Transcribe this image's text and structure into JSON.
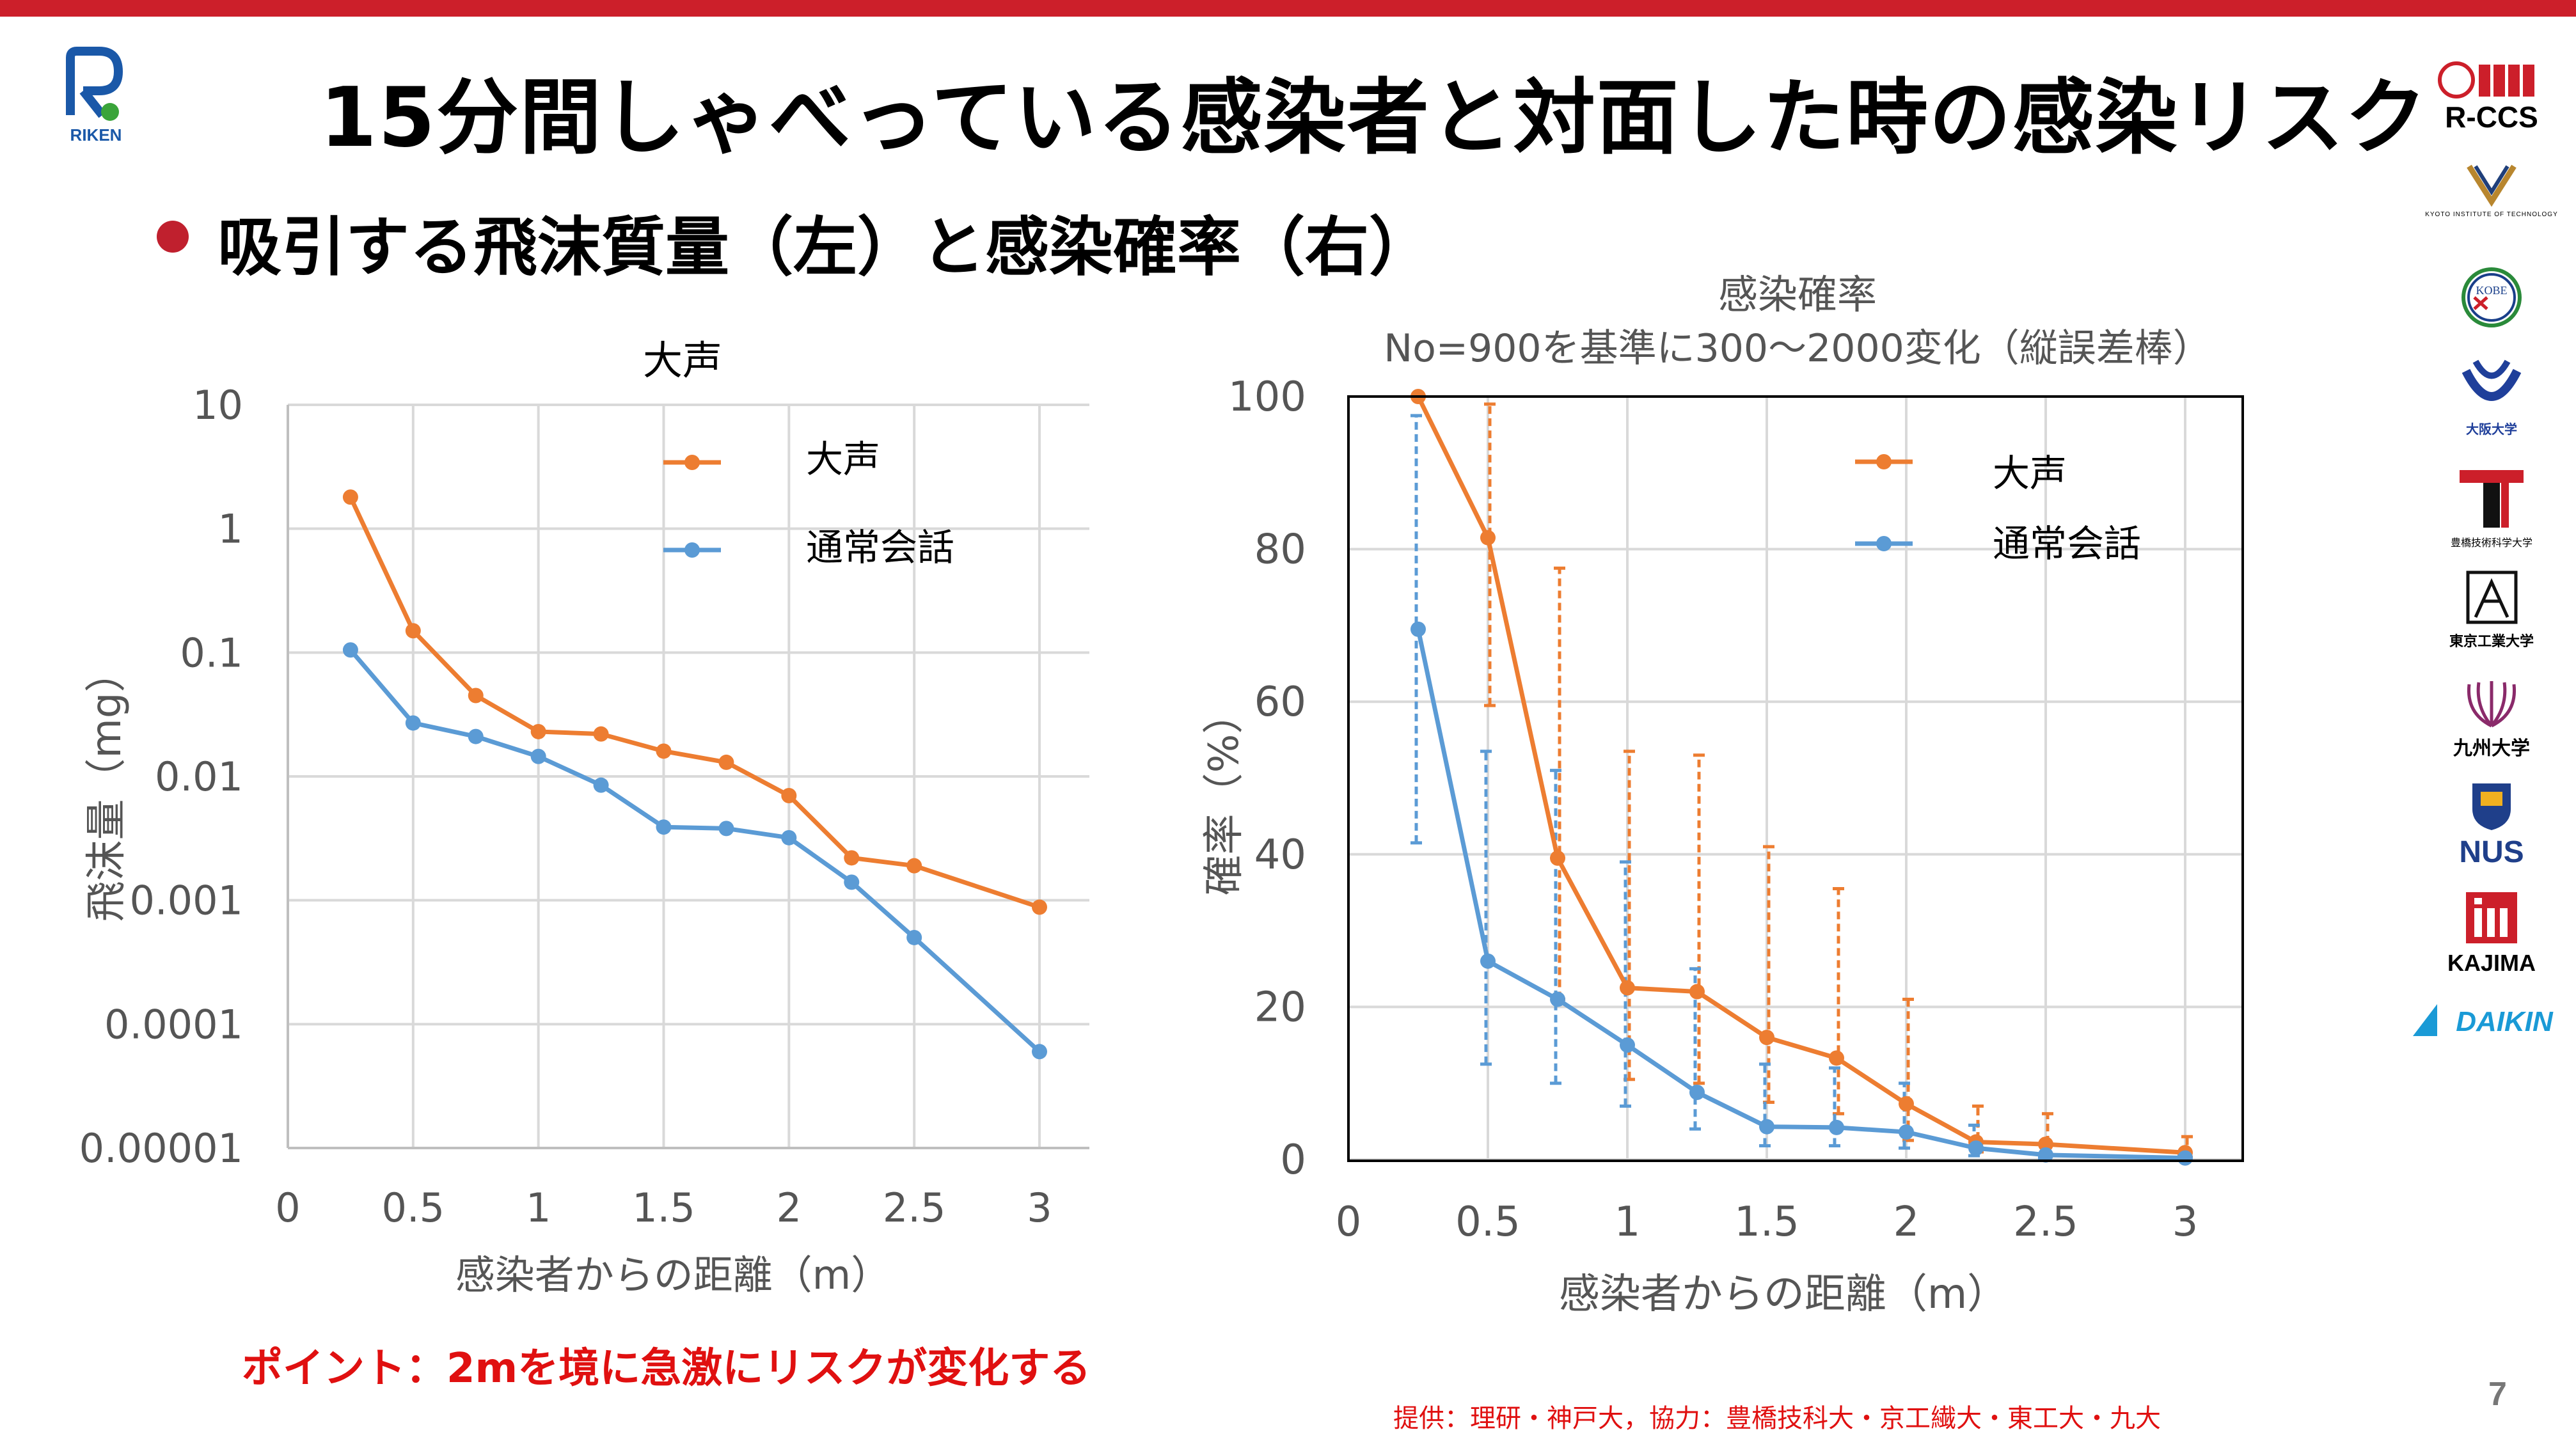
{
  "header": {
    "title": "15分間しゃべっている感染者と対面した時の感染リスク",
    "subtitle": "吸引する飛沫質量（左）と感染確率（右）",
    "riken_logo_text": "RIKEN"
  },
  "colors": {
    "topbar": "#cc1f2a",
    "loud": "#ed7d31",
    "normal": "#5b9bd5",
    "accent_red": "#e01010"
  },
  "chart_data": [
    {
      "type": "line",
      "title": "大声",
      "xlabel": "感染者からの距離（m）",
      "ylabel": "飛沫量（mg）",
      "yscale": "log",
      "xlim": [
        0,
        3
      ],
      "ylim": [
        1e-05,
        10
      ],
      "xticks": [
        "0",
        "0.5",
        "1",
        "1.5",
        "2",
        "2.5",
        "3"
      ],
      "yticks": [
        "10",
        "1",
        "0.1",
        "0.01",
        "0.001",
        "0.0001",
        "0.00001"
      ],
      "grid": true,
      "legend_position": "top-right",
      "series": [
        {
          "name": "大声",
          "color": "#ed7d31",
          "x": [
            0.25,
            0.5,
            0.75,
            1,
            1.25,
            1.5,
            1.75,
            2,
            2.25,
            2.5,
            3
          ],
          "y": [
            1.8,
            0.15,
            0.045,
            0.023,
            0.022,
            0.016,
            0.013,
            0.007,
            0.0022,
            0.0019,
            0.00088
          ]
        },
        {
          "name": "通常会話",
          "color": "#5b9bd5",
          "x": [
            0.25,
            0.5,
            0.75,
            1,
            1.25,
            1.5,
            1.75,
            2,
            2.25,
            2.5,
            3
          ],
          "y": [
            0.105,
            0.027,
            0.021,
            0.0145,
            0.0085,
            0.0039,
            0.0038,
            0.0032,
            0.0014,
            0.0005,
            6e-05
          ]
        }
      ]
    },
    {
      "type": "line",
      "title": "感染確率",
      "subtitle": "No=900を基準に300～2000変化（縦誤差棒）",
      "xlabel": "感染者からの距離（m）",
      "ylabel": "確率（%）",
      "xlim": [
        0,
        3
      ],
      "ylim": [
        0,
        100
      ],
      "xticks": [
        "0",
        "0.5",
        "1",
        "1.5",
        "2",
        "2.5",
        "3"
      ],
      "yticks": [
        "0",
        "20",
        "40",
        "60",
        "80",
        "100"
      ],
      "grid": true,
      "legend_position": "top-right",
      "series": [
        {
          "name": "大声",
          "color": "#ed7d31",
          "x": [
            0.25,
            0.5,
            0.75,
            1,
            1.25,
            1.5,
            1.75,
            2,
            2.25,
            2.5,
            3
          ],
          "y": [
            100,
            81.5,
            39.5,
            22.5,
            22,
            16,
            13.3,
            7.3,
            2.3,
            2,
            0.9
          ],
          "err_low": [
            100,
            59.5,
            21,
            10.5,
            10,
            7.5,
            6,
            2.5,
            1,
            0.5,
            0.3
          ],
          "err_high": [
            100,
            99,
            77.5,
            53.5,
            53,
            41,
            35.5,
            21,
            7,
            6,
            3
          ]
        },
        {
          "name": "通常会話",
          "color": "#5b9bd5",
          "x": [
            0.25,
            0.5,
            0.75,
            1,
            1.25,
            1.5,
            1.75,
            2,
            2.25,
            2.5,
            3
          ],
          "y": [
            69.5,
            26,
            21,
            15,
            8.8,
            4.3,
            4.2,
            3.6,
            1.5,
            0.6,
            0.2
          ],
          "err_low": [
            41.5,
            12.5,
            10,
            7,
            4,
            1.8,
            1.8,
            1.5,
            0.5,
            0.2,
            0.1
          ],
          "err_high": [
            97.5,
            53.5,
            51,
            39,
            25,
            12.5,
            12,
            10,
            4.5,
            2,
            0.7
          ]
        }
      ]
    }
  ],
  "footer": {
    "point": "ポイント：2mを境に急激にリスクが変化する",
    "credit": "提供：理研・神戸大，協力：豊橋技科大・京工繊大・東工大・九大",
    "page_number": "7"
  },
  "logos": [
    {
      "name": "R-CCS",
      "text": "R-CCS"
    },
    {
      "name": "kyoto-institute",
      "text": "KYOTO INSTITUTE OF TECHNOLOGY"
    },
    {
      "name": "kobe",
      "text": "KOBE"
    },
    {
      "name": "osaka",
      "text": "大阪大学"
    },
    {
      "name": "toyohashi",
      "text": "豊橋技術科学大学"
    },
    {
      "name": "tokyo-tech",
      "text": "東京工業大学"
    },
    {
      "name": "kyushu",
      "text": "九州大学"
    },
    {
      "name": "nus",
      "text": "NUS"
    },
    {
      "name": "kajima",
      "text": "KAJIMA"
    },
    {
      "name": "daikin",
      "text": "DAIKIN"
    }
  ]
}
